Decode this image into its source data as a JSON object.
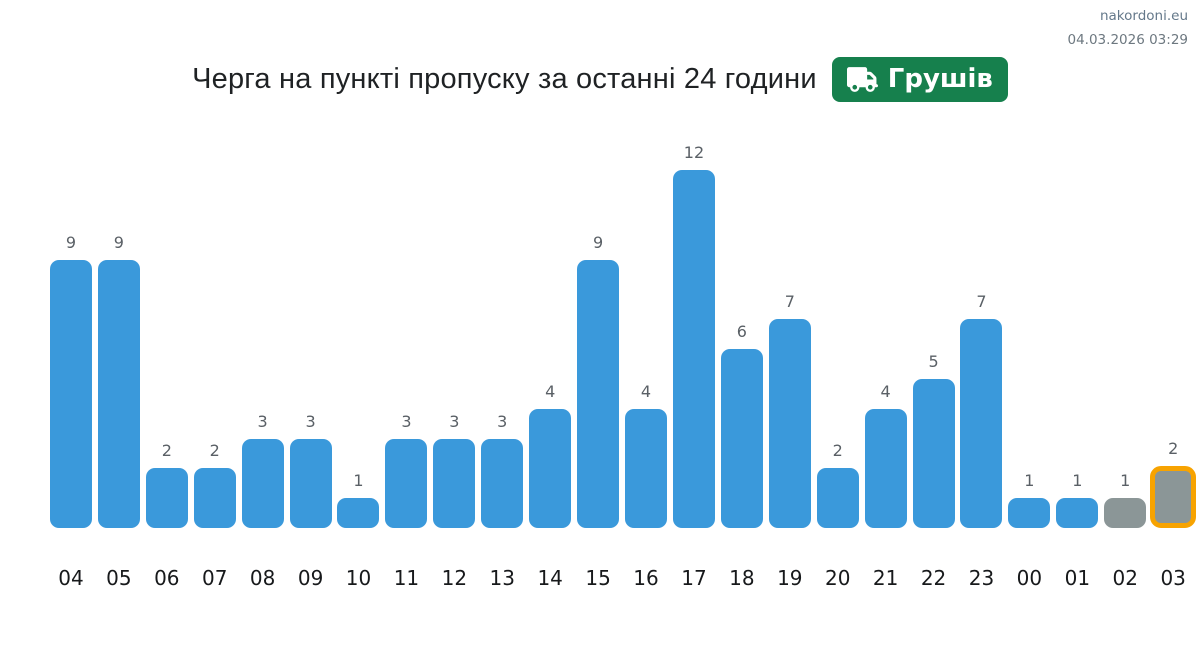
{
  "header": {
    "site": "nakordoni.eu",
    "timestamp": "04.03.2026 03:29"
  },
  "title": {
    "text": "Черга на пункті пропуску за останні 24 години",
    "badge_label": "Грушів",
    "badge_icon": "truck-icon",
    "badge_color": "#16804d"
  },
  "chart_data": {
    "type": "bar",
    "title": "Черга на пункті пропуску за останні 24 години — Грушів",
    "xlabel": "",
    "ylabel": "",
    "ylim": [
      0,
      12
    ],
    "grid": false,
    "legend": "none",
    "value_labels": true,
    "categories": [
      "04",
      "05",
      "06",
      "07",
      "08",
      "09",
      "10",
      "11",
      "12",
      "13",
      "14",
      "15",
      "16",
      "17",
      "18",
      "19",
      "20",
      "21",
      "22",
      "23",
      "00",
      "01",
      "02",
      "03"
    ],
    "values": [
      9,
      9,
      2,
      2,
      3,
      3,
      1,
      3,
      3,
      3,
      4,
      9,
      4,
      12,
      6,
      7,
      2,
      4,
      5,
      7,
      1,
      1,
      1,
      2
    ],
    "bar_color": "#3a99db",
    "inactive_bar_color": "#8b9697",
    "inactive_indices": [
      22,
      23
    ],
    "highlight_index": 23,
    "highlight_border_color": "#f7a301",
    "value_label_color": "#5a6066"
  }
}
